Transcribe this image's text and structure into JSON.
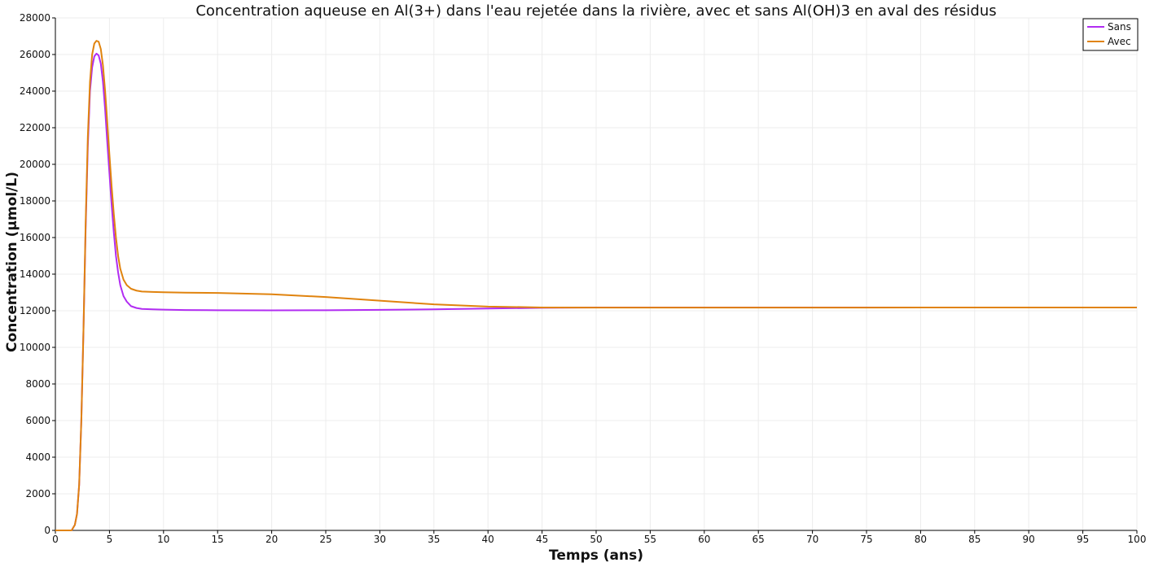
{
  "chart_data": {
    "type": "line",
    "title": "Concentration aqueuse en Al(3+) dans l'eau rejetée dans la rivière, avec et sans Al(OH)3 en aval des résidus",
    "xlabel": "Temps (ans)",
    "ylabel": "Concentration (µmol/L)",
    "xlim": [
      0,
      100
    ],
    "ylim": [
      0,
      28000
    ],
    "x_ticks": [
      0,
      5,
      10,
      15,
      20,
      25,
      30,
      35,
      40,
      45,
      50,
      55,
      60,
      65,
      70,
      75,
      80,
      85,
      90,
      95,
      100
    ],
    "y_ticks": [
      0,
      2000,
      4000,
      6000,
      8000,
      10000,
      12000,
      14000,
      16000,
      18000,
      20000,
      22000,
      24000,
      26000,
      28000
    ],
    "grid": true,
    "legend_position": "top-right",
    "series": [
      {
        "name": "Sans",
        "color": "#b12cf2",
        "x": [
          0,
          1.5,
          1.8,
          2.0,
          2.2,
          2.4,
          2.6,
          2.8,
          3.0,
          3.2,
          3.4,
          3.6,
          3.8,
          4.0,
          4.2,
          4.4,
          4.6,
          4.8,
          5.0,
          5.2,
          5.4,
          5.6,
          5.8,
          6.0,
          6.3,
          6.6,
          7.0,
          7.5,
          8.0,
          9.0,
          10,
          12,
          15,
          20,
          25,
          30,
          35,
          40,
          45,
          50,
          55,
          60,
          65,
          70,
          75,
          80,
          85,
          90,
          95,
          100
        ],
        "y": [
          0,
          0,
          300,
          900,
          2500,
          6000,
          11000,
          16500,
          21000,
          24000,
          25300,
          25900,
          26050,
          25950,
          25500,
          24500,
          23000,
          21200,
          19500,
          17800,
          16300,
          15000,
          14100,
          13400,
          12800,
          12500,
          12250,
          12150,
          12100,
          12080,
          12060,
          12040,
          12030,
          12020,
          12030,
          12050,
          12080,
          12120,
          12160,
          12180,
          12180,
          12180,
          12180,
          12180,
          12180,
          12180,
          12180,
          12180,
          12180,
          12180
        ]
      },
      {
        "name": "Avec",
        "color": "#e0830e",
        "x": [
          0,
          1.5,
          1.8,
          2.0,
          2.2,
          2.4,
          2.6,
          2.8,
          3.0,
          3.2,
          3.4,
          3.6,
          3.8,
          4.0,
          4.2,
          4.4,
          4.6,
          4.8,
          5.0,
          5.2,
          5.4,
          5.6,
          5.8,
          6.0,
          6.3,
          6.6,
          7.0,
          7.5,
          8.0,
          9.0,
          10,
          12,
          15,
          20,
          25,
          30,
          35,
          40,
          45,
          50,
          55,
          60,
          65,
          70,
          75,
          80,
          85,
          90,
          95,
          100
        ],
        "y": [
          0,
          0,
          300,
          900,
          2500,
          6000,
          11000,
          16800,
          21500,
          24500,
          26000,
          26600,
          26750,
          26700,
          26300,
          25400,
          24000,
          22300,
          20500,
          18800,
          17300,
          16000,
          15000,
          14300,
          13700,
          13400,
          13200,
          13100,
          13050,
          13030,
          13010,
          12990,
          12970,
          12900,
          12750,
          12550,
          12350,
          12230,
          12180,
          12170,
          12170,
          12170,
          12170,
          12170,
          12170,
          12180,
          12180,
          12180,
          12180,
          12180
        ]
      }
    ]
  }
}
